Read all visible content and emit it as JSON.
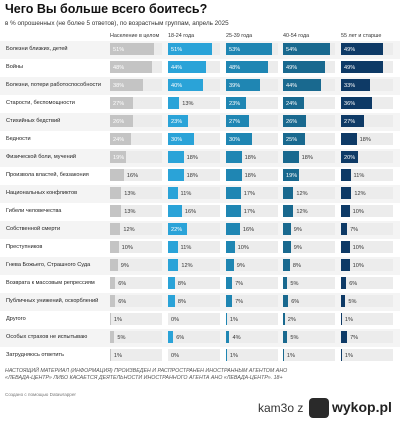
{
  "header": {
    "title": "Чего Вы больше всего боитесь?",
    "subtitle": "в % опрошенных (не более 5 ответов), по возрастным группам, апрель 2025"
  },
  "chart_data": {
    "type": "table",
    "title": "Чего Вы больше всего боитесь?",
    "subtitle": "в % опрошенных (не более 5 ответов), по возрастным группам, апрель 2025",
    "columns": [
      "Население в целом",
      "18-24 года",
      "25-39 года",
      "40-54 года",
      "55 лет и старше"
    ],
    "column_colors": [
      "#c4c4c4",
      "#2aa3d8",
      "#1f86b3",
      "#19698f",
      "#0e3a66"
    ],
    "xlim": [
      0,
      60
    ],
    "rows": [
      {
        "label": "Болезни близких, детей",
        "values": [
          51,
          51,
          53,
          54,
          49
        ]
      },
      {
        "label": "Войны",
        "values": [
          48,
          44,
          48,
          49,
          49
        ]
      },
      {
        "label": "Болезни, потери работоспособности",
        "values": [
          38,
          40,
          39,
          44,
          33
        ]
      },
      {
        "label": "Старости, беспомощности",
        "values": [
          27,
          13,
          23,
          24,
          36
        ]
      },
      {
        "label": "Стихийных бедствий",
        "values": [
          26,
          23,
          27,
          26,
          27
        ]
      },
      {
        "label": "Бедности",
        "values": [
          24,
          30,
          30,
          25,
          18
        ]
      },
      {
        "label": "Физической боли, мучений",
        "values": [
          19,
          18,
          18,
          18,
          20
        ]
      },
      {
        "label": "Произвола властей, беззакония",
        "values": [
          16,
          18,
          18,
          19,
          11
        ]
      },
      {
        "label": "Национальных конфликтов",
        "values": [
          13,
          11,
          17,
          12,
          12
        ]
      },
      {
        "label": "Гибели человечества",
        "values": [
          13,
          16,
          17,
          12,
          10
        ]
      },
      {
        "label": "Собственной смерти",
        "values": [
          12,
          22,
          16,
          9,
          7
        ]
      },
      {
        "label": "Преступников",
        "values": [
          10,
          11,
          10,
          9,
          10
        ]
      },
      {
        "label": "Гнева Божьего, Страшного Суда",
        "values": [
          9,
          12,
          9,
          8,
          10
        ]
      },
      {
        "label": "Возврата к массовым репрессиям",
        "values": [
          6,
          8,
          7,
          5,
          6
        ]
      },
      {
        "label": "Публичных унижений, оскорблений",
        "values": [
          6,
          8,
          7,
          6,
          5
        ]
      },
      {
        "label": "Другого",
        "values": [
          1,
          0,
          1,
          2,
          1
        ]
      },
      {
        "label": "Особых страхов не испытываю",
        "values": [
          5,
          6,
          4,
          5,
          7
        ]
      },
      {
        "label": "Затрудняюсь ответить",
        "values": [
          1,
          0,
          1,
          1,
          1
        ]
      }
    ]
  },
  "footer": {
    "disclaimer": "НАСТОЯЩИЙ МАТЕРИАЛ (ИНФОРМАЦИЯ) ПРОИЗВЕДЕН И РАСПРОСТРАНЕН ИНОСТРАННЫМ АГЕНТОМ АНО «ЛЕВАДА-ЦЕНТР» ЛИБО КАСАЕТСЯ ДЕЯТЕЛЬНОСТИ ИНОСТРАННОГО АГЕНТА АНО «ЛЕВАДА-ЦЕНТР». 18+",
    "credit": "Создано с помощью Datawrapper"
  },
  "watermark": {
    "user": "kam3o",
    "separator": "z",
    "logo_text": "wykop.pl"
  }
}
